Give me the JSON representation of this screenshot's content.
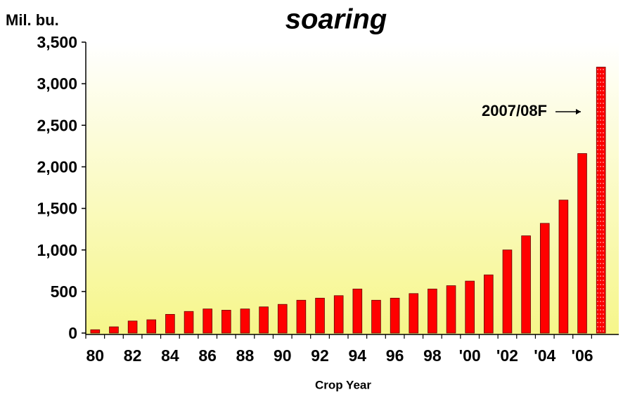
{
  "chart_data": {
    "type": "bar",
    "title": "soaring",
    "y_label": "Mil. bu.",
    "x_label": "Crop Year",
    "annotation": "2007/08F",
    "categories": [
      "80",
      null,
      "82",
      null,
      "84",
      null,
      "86",
      null,
      "88",
      null,
      "90",
      null,
      "92",
      null,
      "94",
      null,
      "96",
      null,
      "98",
      null,
      "'00",
      null,
      "'02",
      null,
      "'04",
      null,
      "'06",
      null
    ],
    "values": [
      40,
      75,
      145,
      160,
      225,
      260,
      290,
      275,
      290,
      315,
      345,
      395,
      420,
      450,
      530,
      395,
      420,
      475,
      530,
      570,
      625,
      700,
      1000,
      1170,
      1320,
      1600,
      2160,
      3200
    ],
    "color": "#ff0000",
    "ylim": [
      0,
      3500
    ],
    "yticks": [
      0,
      500,
      {
        "value": 1000,
        "label": "1,000"
      },
      {
        "value": 1500,
        "label": "1,500"
      },
      {
        "value": 2000,
        "label": "2,000"
      },
      {
        "value": 2500,
        "label": "2,500"
      },
      {
        "value": 3000,
        "label": "3,000"
      },
      {
        "value": 3500,
        "label": "3,500"
      }
    ]
  }
}
